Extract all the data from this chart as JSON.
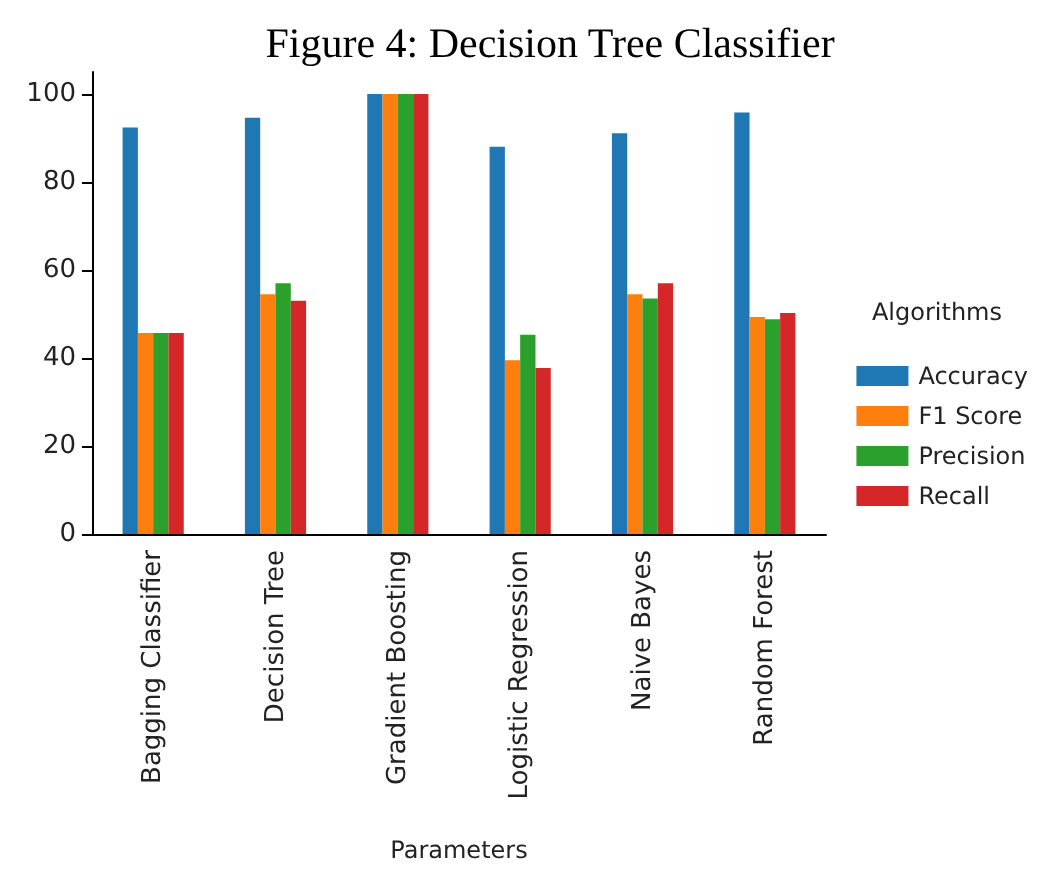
{
  "chart_data": {
    "type": "bar",
    "title": "Figure 4: Decision Tree Classifier",
    "xlabel": "Parameters",
    "legend_title": "Algorithms",
    "categories": [
      "Bagging Classifier",
      "Decision Tree",
      "Gradient Boosting",
      "Logistic Regression",
      "Naive Bayes",
      "Random Forest"
    ],
    "series": [
      {
        "name": "Accuracy",
        "color": "#1f77b4",
        "values": [
          92.4,
          94.6,
          100,
          88.0,
          91.1,
          95.8
        ]
      },
      {
        "name": "F1 Score",
        "color": "#ff7f0e",
        "values": [
          45.7,
          54.5,
          100,
          39.5,
          54.5,
          49.3
        ]
      },
      {
        "name": "Precision",
        "color": "#2ca02c",
        "values": [
          45.7,
          57.0,
          100,
          45.3,
          53.5,
          48.8
        ]
      },
      {
        "name": "Recall",
        "color": "#d62728",
        "values": [
          45.7,
          53.0,
          100,
          37.7,
          57.0,
          50.2
        ]
      }
    ],
    "ylim": [
      0,
      105
    ],
    "yticks": [
      0,
      20,
      40,
      60,
      80,
      100
    ],
    "grid": false,
    "legend": "right"
  }
}
